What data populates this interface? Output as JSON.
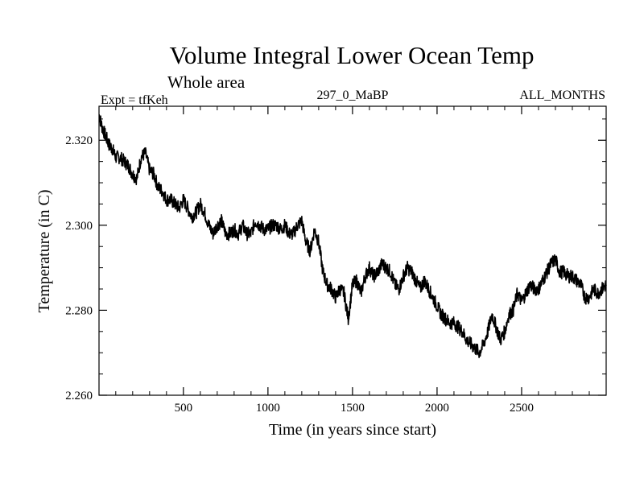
{
  "chart_data": {
    "type": "line",
    "title": "Volume Integral Lower Ocean Temp",
    "subtitle": "Whole area",
    "left_label": "Expt = tfKeh",
    "center_label": "297_0_MaBP",
    "right_label": "ALL_MONTHS",
    "xlabel": "Time (in years since start)",
    "ylabel": "Temperature (in C)",
    "xlim": [
      1,
      3000
    ],
    "ylim": [
      2.26,
      2.328
    ],
    "xticks": [
      500,
      1000,
      1500,
      2000,
      2500
    ],
    "xtick_labels": [
      "500",
      "1000",
      "1500",
      "2000",
      "2500"
    ],
    "yticks": [
      2.26,
      2.28,
      2.3,
      2.32
    ],
    "ytick_labels": [
      "2.260",
      "2.280",
      "2.300",
      "2.320"
    ],
    "grid": false,
    "series": [
      {
        "line_color": "#000000",
        "x": [
          1,
          20,
          40,
          60,
          80,
          100,
          125,
          150,
          175,
          200,
          225,
          250,
          275,
          300,
          325,
          350,
          375,
          400,
          425,
          450,
          475,
          500,
          525,
          550,
          575,
          600,
          625,
          650,
          675,
          700,
          725,
          750,
          775,
          800,
          825,
          850,
          875,
          900,
          925,
          950,
          975,
          1000,
          1025,
          1050,
          1075,
          1100,
          1125,
          1150,
          1175,
          1200,
          1225,
          1250,
          1275,
          1300,
          1325,
          1350,
          1375,
          1400,
          1425,
          1450,
          1475,
          1500,
          1525,
          1550,
          1575,
          1600,
          1625,
          1650,
          1675,
          1700,
          1725,
          1750,
          1775,
          1800,
          1825,
          1850,
          1875,
          1900,
          1925,
          1950,
          1975,
          2000,
          2025,
          2050,
          2075,
          2100,
          2125,
          2150,
          2175,
          2200,
          2225,
          2250,
          2275,
          2300,
          2325,
          2350,
          2375,
          2400,
          2425,
          2450,
          2475,
          2500,
          2525,
          2550,
          2575,
          2600,
          2625,
          2650,
          2675,
          2700,
          2725,
          2750,
          2775,
          2800,
          2825,
          2850,
          2875,
          2900,
          2925,
          2950,
          2975,
          3000
        ],
        "y": [
          2.326,
          2.323,
          2.321,
          2.319,
          2.318,
          2.316,
          2.316,
          2.315,
          2.314,
          2.312,
          2.311,
          2.316,
          2.317,
          2.313,
          2.312,
          2.309,
          2.308,
          2.306,
          2.306,
          2.305,
          2.304,
          2.306,
          2.304,
          2.302,
          2.303,
          2.305,
          2.303,
          2.3,
          2.298,
          2.3,
          2.301,
          2.298,
          2.298,
          2.299,
          2.298,
          2.3,
          2.298,
          2.298,
          2.301,
          2.3,
          2.299,
          2.299,
          2.3,
          2.3,
          2.299,
          2.3,
          2.298,
          2.298,
          2.3,
          2.301,
          2.296,
          2.294,
          2.299,
          2.296,
          2.289,
          2.286,
          2.285,
          2.283,
          2.285,
          2.284,
          2.278,
          2.286,
          2.287,
          2.284,
          2.288,
          2.29,
          2.288,
          2.289,
          2.291,
          2.29,
          2.289,
          2.286,
          2.285,
          2.288,
          2.29,
          2.289,
          2.287,
          2.285,
          2.287,
          2.285,
          2.283,
          2.281,
          2.279,
          2.278,
          2.277,
          2.277,
          2.276,
          2.275,
          2.273,
          2.272,
          2.271,
          2.27,
          2.272,
          2.275,
          2.279,
          2.276,
          2.273,
          2.275,
          2.279,
          2.28,
          2.284,
          2.282,
          2.284,
          2.286,
          2.285,
          2.285,
          2.287,
          2.289,
          2.291,
          2.292,
          2.289,
          2.289,
          2.288,
          2.288,
          2.287,
          2.286,
          2.283,
          2.283,
          2.285,
          2.284,
          2.285,
          2.286
        ]
      }
    ]
  }
}
